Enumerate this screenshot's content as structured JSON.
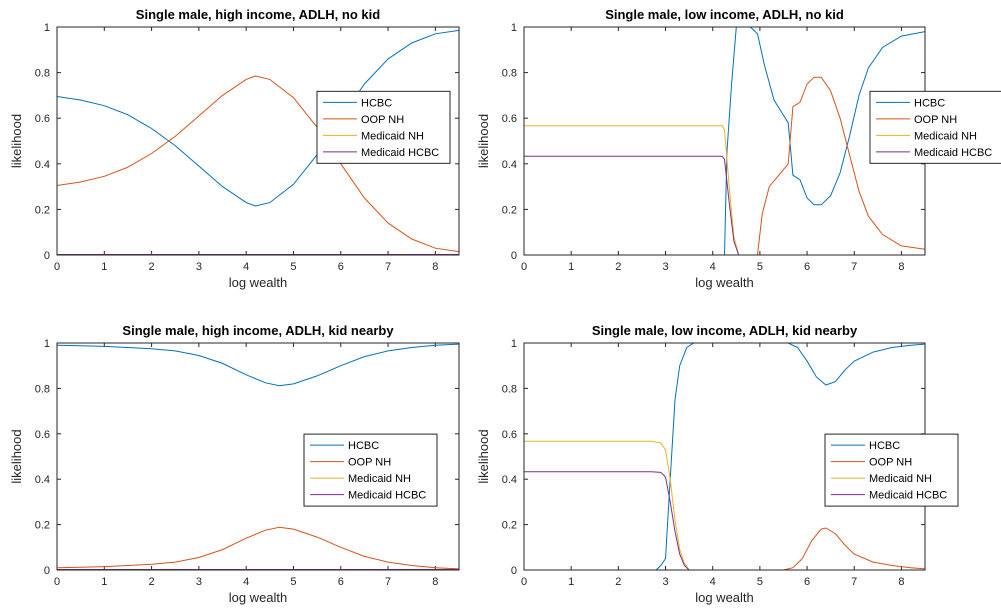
{
  "chart_data": [
    {
      "type": "line",
      "title": "Single male, high income, ADLH, no kid",
      "xlabel": "log wealth",
      "ylabel": "likelihood",
      "xlim": [
        0,
        8.5
      ],
      "ylim": [
        0,
        1
      ],
      "xticks": [
        0,
        1,
        2,
        3,
        4,
        5,
        6,
        7,
        8
      ],
      "yticks": [
        0,
        0.2,
        0.4,
        0.6,
        0.8,
        1
      ],
      "legend_position": "right-middle",
      "series": [
        {
          "name": "HCBC",
          "color": "#0072BD",
          "x": [
            0,
            0.5,
            1,
            1.5,
            2,
            2.5,
            3,
            3.5,
            4,
            4.2,
            4.5,
            5,
            5.5,
            6,
            6.5,
            7,
            7.5,
            8,
            8.5
          ],
          "y": [
            0.695,
            0.68,
            0.655,
            0.615,
            0.555,
            0.48,
            0.39,
            0.3,
            0.23,
            0.215,
            0.23,
            0.31,
            0.44,
            0.6,
            0.75,
            0.86,
            0.93,
            0.97,
            0.985
          ]
        },
        {
          "name": "OOP NH",
          "color": "#D95319",
          "x": [
            0,
            0.5,
            1,
            1.5,
            2,
            2.5,
            3,
            3.5,
            4,
            4.2,
            4.5,
            5,
            5.5,
            6,
            6.5,
            7,
            7.5,
            8,
            8.5
          ],
          "y": [
            0.305,
            0.32,
            0.345,
            0.385,
            0.445,
            0.52,
            0.61,
            0.7,
            0.77,
            0.785,
            0.77,
            0.69,
            0.56,
            0.4,
            0.25,
            0.14,
            0.07,
            0.03,
            0.015
          ]
        },
        {
          "name": "Medicaid NH",
          "color": "#EDB120",
          "x": [
            0,
            8.5
          ],
          "y": [
            0,
            0
          ]
        },
        {
          "name": "Medicaid HCBC",
          "color": "#7E2F8E",
          "x": [
            0,
            8.5
          ],
          "y": [
            0.002,
            0.002
          ]
        }
      ]
    },
    {
      "type": "line",
      "title": "Single male, low income, ADLH, no kid",
      "xlabel": "log wealth",
      "ylabel": "likelihood",
      "xlim": [
        0,
        8.5
      ],
      "ylim": [
        0,
        1
      ],
      "xticks": [
        0,
        1,
        2,
        3,
        4,
        5,
        6,
        7,
        8
      ],
      "yticks": [
        0,
        0.2,
        0.4,
        0.6,
        0.8,
        1
      ],
      "legend_position": "right-middle",
      "series": [
        {
          "name": "HCBC",
          "color": "#0072BD",
          "x": [
            0,
            4.25,
            4.3,
            4.4,
            4.5,
            4.6,
            4.7,
            4.8,
            4.95,
            5.1,
            5.3,
            5.45,
            5.6,
            5.7,
            5.85,
            6.0,
            6.15,
            6.3,
            6.5,
            6.7,
            6.9,
            7.1,
            7.3,
            7.6,
            8.0,
            8.5
          ],
          "y": [
            0,
            0,
            0.45,
            0.75,
            1,
            1,
            1,
            1,
            0.97,
            0.83,
            0.68,
            0.63,
            0.58,
            0.35,
            0.33,
            0.25,
            0.22,
            0.22,
            0.26,
            0.36,
            0.52,
            0.7,
            0.82,
            0.91,
            0.96,
            0.98
          ]
        },
        {
          "name": "OOP NH",
          "color": "#D95319",
          "x": [
            0,
            4.95,
            5.05,
            5.2,
            5.4,
            5.6,
            5.7,
            5.85,
            6.0,
            6.15,
            6.3,
            6.5,
            6.7,
            6.9,
            7.1,
            7.3,
            7.6,
            8.0,
            8.5
          ],
          "y": [
            0,
            0,
            0.18,
            0.3,
            0.35,
            0.4,
            0.65,
            0.67,
            0.75,
            0.78,
            0.78,
            0.72,
            0.6,
            0.44,
            0.28,
            0.17,
            0.09,
            0.04,
            0.025
          ]
        },
        {
          "name": "Medicaid NH",
          "color": "#EDB120",
          "x": [
            0,
            4.2,
            4.25,
            4.35,
            4.45,
            4.55,
            8.5
          ],
          "y": [
            0.567,
            0.567,
            0.55,
            0.3,
            0.08,
            0,
            0
          ]
        },
        {
          "name": "Medicaid HCBC",
          "color": "#7E2F8E",
          "x": [
            0,
            4.2,
            4.25,
            4.35,
            4.45,
            4.55,
            8.5
          ],
          "y": [
            0.433,
            0.433,
            0.42,
            0.23,
            0.06,
            0,
            0
          ]
        }
      ]
    },
    {
      "type": "line",
      "title": "Single male, high income, ADLH, kid nearby",
      "xlabel": "log wealth",
      "ylabel": "likelihood",
      "xlim": [
        0,
        8.5
      ],
      "ylim": [
        0,
        1
      ],
      "xticks": [
        0,
        1,
        2,
        3,
        4,
        5,
        6,
        7,
        8
      ],
      "yticks": [
        0,
        0.2,
        0.4,
        0.6,
        0.8,
        1
      ],
      "legend_position": "right-middle",
      "series": [
        {
          "name": "HCBC",
          "color": "#0072BD",
          "x": [
            0,
            0.5,
            1,
            1.5,
            2,
            2.5,
            3,
            3.5,
            4,
            4.4,
            4.7,
            5,
            5.5,
            6,
            6.5,
            7,
            7.5,
            8,
            8.5
          ],
          "y": [
            0.99,
            0.988,
            0.985,
            0.98,
            0.975,
            0.965,
            0.945,
            0.91,
            0.86,
            0.825,
            0.812,
            0.82,
            0.855,
            0.9,
            0.94,
            0.965,
            0.98,
            0.99,
            0.995
          ]
        },
        {
          "name": "OOP NH",
          "color": "#D95319",
          "x": [
            0,
            0.5,
            1,
            1.5,
            2,
            2.5,
            3,
            3.5,
            4,
            4.4,
            4.7,
            5,
            5.5,
            6,
            6.5,
            7,
            7.5,
            8,
            8.5
          ],
          "y": [
            0.01,
            0.012,
            0.015,
            0.02,
            0.025,
            0.035,
            0.055,
            0.09,
            0.14,
            0.175,
            0.188,
            0.18,
            0.145,
            0.1,
            0.06,
            0.035,
            0.02,
            0.01,
            0.005
          ]
        },
        {
          "name": "Medicaid NH",
          "color": "#EDB120",
          "x": [
            0,
            8.5
          ],
          "y": [
            0,
            0
          ]
        },
        {
          "name": "Medicaid HCBC",
          "color": "#7E2F8E",
          "x": [
            0,
            8.5
          ],
          "y": [
            0.002,
            0.002
          ]
        }
      ]
    },
    {
      "type": "line",
      "title": "Single male, low income, ADLH, kid nearby",
      "xlabel": "log wealth",
      "ylabel": "likelihood",
      "xlim": [
        0,
        8.5
      ],
      "ylim": [
        0,
        1
      ],
      "xticks": [
        0,
        1,
        2,
        3,
        4,
        5,
        6,
        7,
        8
      ],
      "yticks": [
        0,
        0.2,
        0.4,
        0.6,
        0.8,
        1
      ],
      "legend_position": "right-middle",
      "series": [
        {
          "name": "HCBC",
          "color": "#0072BD",
          "x": [
            0,
            2.8,
            2.9,
            3.0,
            3.1,
            3.2,
            3.3,
            3.45,
            3.6,
            4.0,
            5.0,
            5.6,
            5.8,
            6.0,
            6.2,
            6.4,
            6.6,
            6.8,
            7.0,
            7.4,
            7.8,
            8.2,
            8.5
          ],
          "y": [
            0,
            0,
            0.02,
            0.05,
            0.4,
            0.75,
            0.9,
            0.98,
            1,
            1,
            1,
            1,
            0.98,
            0.92,
            0.85,
            0.815,
            0.83,
            0.88,
            0.92,
            0.96,
            0.98,
            0.99,
            0.995
          ]
        },
        {
          "name": "OOP NH",
          "color": "#D95319",
          "x": [
            0,
            5.5,
            5.7,
            5.9,
            6.1,
            6.3,
            6.4,
            6.6,
            6.8,
            7.0,
            7.4,
            7.8,
            8.2,
            8.5
          ],
          "y": [
            0,
            0,
            0.01,
            0.05,
            0.13,
            0.18,
            0.185,
            0.16,
            0.11,
            0.07,
            0.035,
            0.02,
            0.01,
            0.005
          ]
        },
        {
          "name": "Medicaid NH",
          "color": "#EDB120",
          "x": [
            0,
            2.7,
            2.9,
            3.0,
            3.1,
            3.2,
            3.3,
            3.4,
            3.5,
            8.5
          ],
          "y": [
            0.567,
            0.567,
            0.56,
            0.53,
            0.4,
            0.22,
            0.09,
            0.03,
            0,
            0
          ]
        },
        {
          "name": "Medicaid HCBC",
          "color": "#7E2F8E",
          "x": [
            0,
            2.7,
            2.9,
            3.0,
            3.1,
            3.2,
            3.3,
            3.4,
            3.5,
            8.5
          ],
          "y": [
            0.433,
            0.433,
            0.43,
            0.41,
            0.3,
            0.17,
            0.07,
            0.02,
            0,
            0
          ]
        }
      ]
    }
  ]
}
